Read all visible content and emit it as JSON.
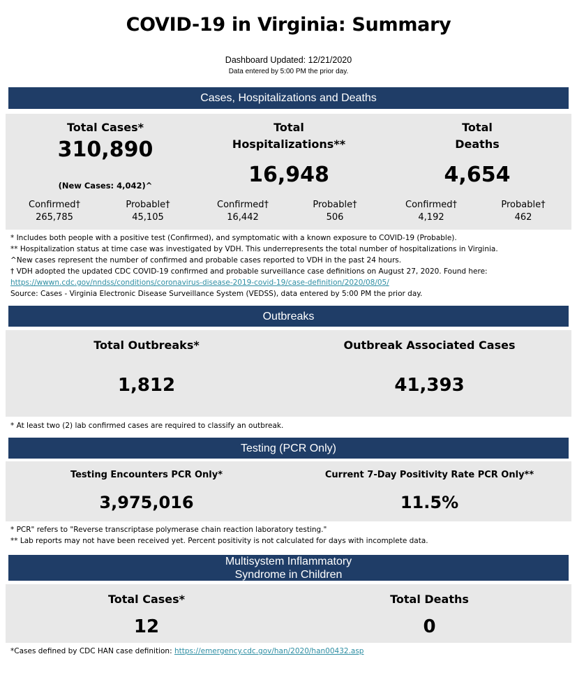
{
  "title": "COVID-19 in Virginia: Summary",
  "updated": "Dashboard Updated: 12/21/2020",
  "data_entered": "Data entered by 5:00 PM the prior day.",
  "colors": {
    "banner": "#1f3d67",
    "panel": "#e8e8e8",
    "link": "#2e8ea3"
  },
  "cases_section": {
    "header": "Cases, Hospitalizations and Deaths",
    "total_cases": {
      "label": "Total Cases*",
      "value": "310,890",
      "new_cases": "(New Cases: 4,042)^",
      "confirmed_label": "Confirmed†",
      "confirmed": "265,785",
      "probable_label": "Probable†",
      "probable": "45,105"
    },
    "hospitalizations": {
      "label_line1": "Total",
      "label_line2": "Hospitalizations**",
      "value": "16,948",
      "confirmed_label": "Confirmed†",
      "confirmed": "16,442",
      "probable_label": "Probable†",
      "probable": "506"
    },
    "deaths": {
      "label_line1": "Total",
      "label_line2": "Deaths",
      "value": "4,654",
      "confirmed_label": "Confirmed†",
      "confirmed": "4,192",
      "probable_label": "Probable†",
      "probable": "462"
    },
    "notes": [
      "* Includes both people with a positive test (Confirmed), and symptomatic with a known exposure to COVID-19 (Probable).",
      "** Hospitalization status at time case was investigated by VDH. This underrepresents the total number of hospitalizations in Virginia.",
      "^New cases represent the number of confirmed and probable cases reported to VDH in the past 24 hours.",
      "† VDH adopted the updated CDC COVID-19 confirmed and probable surveillance case definitions on August 27, 2020. Found here:"
    ],
    "link": "https://wwwn.cdc.gov/nndss/conditions/coronavirus-disease-2019-covid-19/case-definition/2020/08/05/",
    "source": "Source:  Cases - Virginia Electronic Disease Surveillance System (VEDSS), data entered by 5:00 PM the prior day."
  },
  "outbreaks_section": {
    "header": "Outbreaks",
    "total_label": "Total Outbreaks*",
    "total_value": "1,812",
    "cases_label": "Outbreak Associated Cases",
    "cases_value": "41,393",
    "note": "* At least two (2) lab confirmed cases are required to classify an outbreak."
  },
  "testing_section": {
    "header": "Testing (PCR Only)",
    "encounters_label": "Testing Encounters PCR Only*",
    "encounters_value": "3,975,016",
    "positivity_label": "Current 7-Day Positivity Rate PCR Only**",
    "positivity_value": "11.5%",
    "note1": "* PCR\" refers to \"Reverse transcriptase polymerase chain reaction laboratory testing.\"",
    "note2": "** Lab reports may not have been received yet. Percent positivity is not calculated for days with incomplete data."
  },
  "mis_section": {
    "header_line1": "Multisystem Inflammatory",
    "header_line2": "Syndrome in Children",
    "cases_label": "Total Cases*",
    "cases_value": "12",
    "deaths_label": "Total Deaths",
    "deaths_value": "0",
    "note": "*Cases defined by CDC HAN case definition: ",
    "link": "https://emergency.cdc.gov/han/2020/han00432.asp"
  }
}
